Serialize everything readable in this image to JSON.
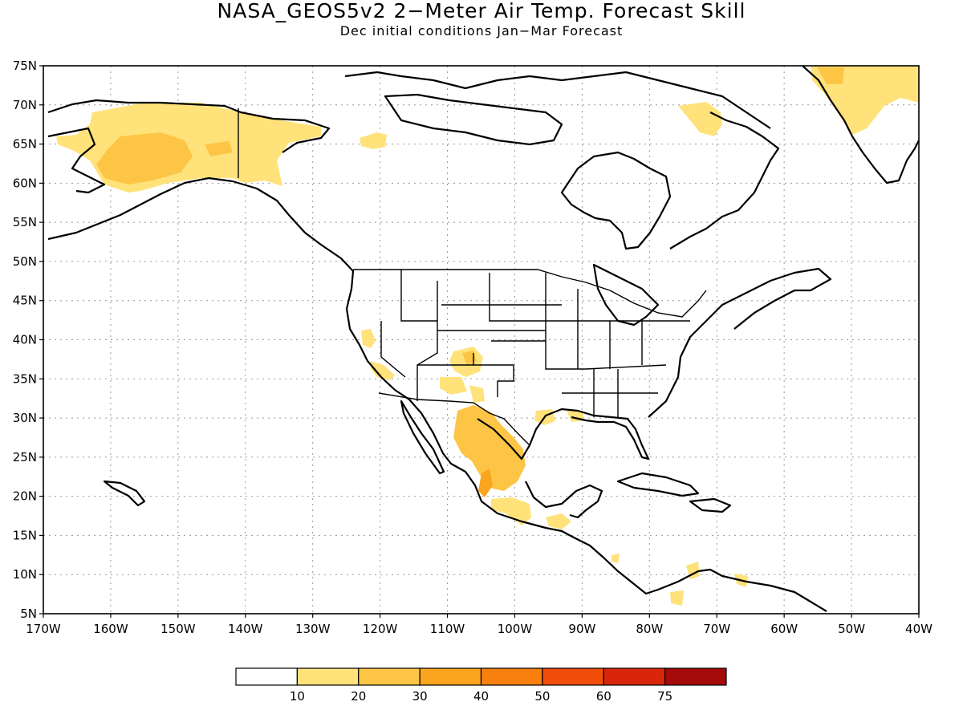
{
  "title": "NASA_GEOS5v2 2−Meter Air Temp. Forecast Skill",
  "subtitle": "Dec initial conditions  Jan−Mar Forecast",
  "lat_labels": [
    "75N",
    "70N",
    "65N",
    "60N",
    "55N",
    "50N",
    "45N",
    "40N",
    "35N",
    "30N",
    "25N",
    "20N",
    "15N",
    "10N",
    "5N"
  ],
  "lon_labels": [
    "170W",
    "160W",
    "150W",
    "140W",
    "130W",
    "120W",
    "110W",
    "100W",
    "90W",
    "80W",
    "70W",
    "60W",
    "50W",
    "40W"
  ],
  "colorbar": {
    "colors": [
      "#ffffff",
      "#ffe27a",
      "#fdc545",
      "#fba41d",
      "#f97f0e",
      "#f24d0a",
      "#d9260b",
      "#a50a0a"
    ],
    "labels": [
      "10",
      "20",
      "30",
      "40",
      "50",
      "60",
      "75"
    ]
  },
  "skill_regions": [
    {
      "name": "alaska",
      "level": 1
    },
    {
      "name": "alaska-core",
      "level": 2
    },
    {
      "name": "canada-arctic",
      "level": 1
    },
    {
      "name": "baffin",
      "level": 1
    },
    {
      "name": "greenland",
      "level": 1
    },
    {
      "name": "california",
      "level": 1
    },
    {
      "name": "four-corners",
      "level": 1
    },
    {
      "name": "four-corners-core",
      "level": 2
    },
    {
      "name": "texas",
      "level": 1
    },
    {
      "name": "louisiana",
      "level": 1
    },
    {
      "name": "mexico-west",
      "level": 2
    },
    {
      "name": "mexico-core",
      "level": 3
    },
    {
      "name": "mexico-south",
      "level": 1
    },
    {
      "name": "caribbean",
      "level": 1
    }
  ]
}
